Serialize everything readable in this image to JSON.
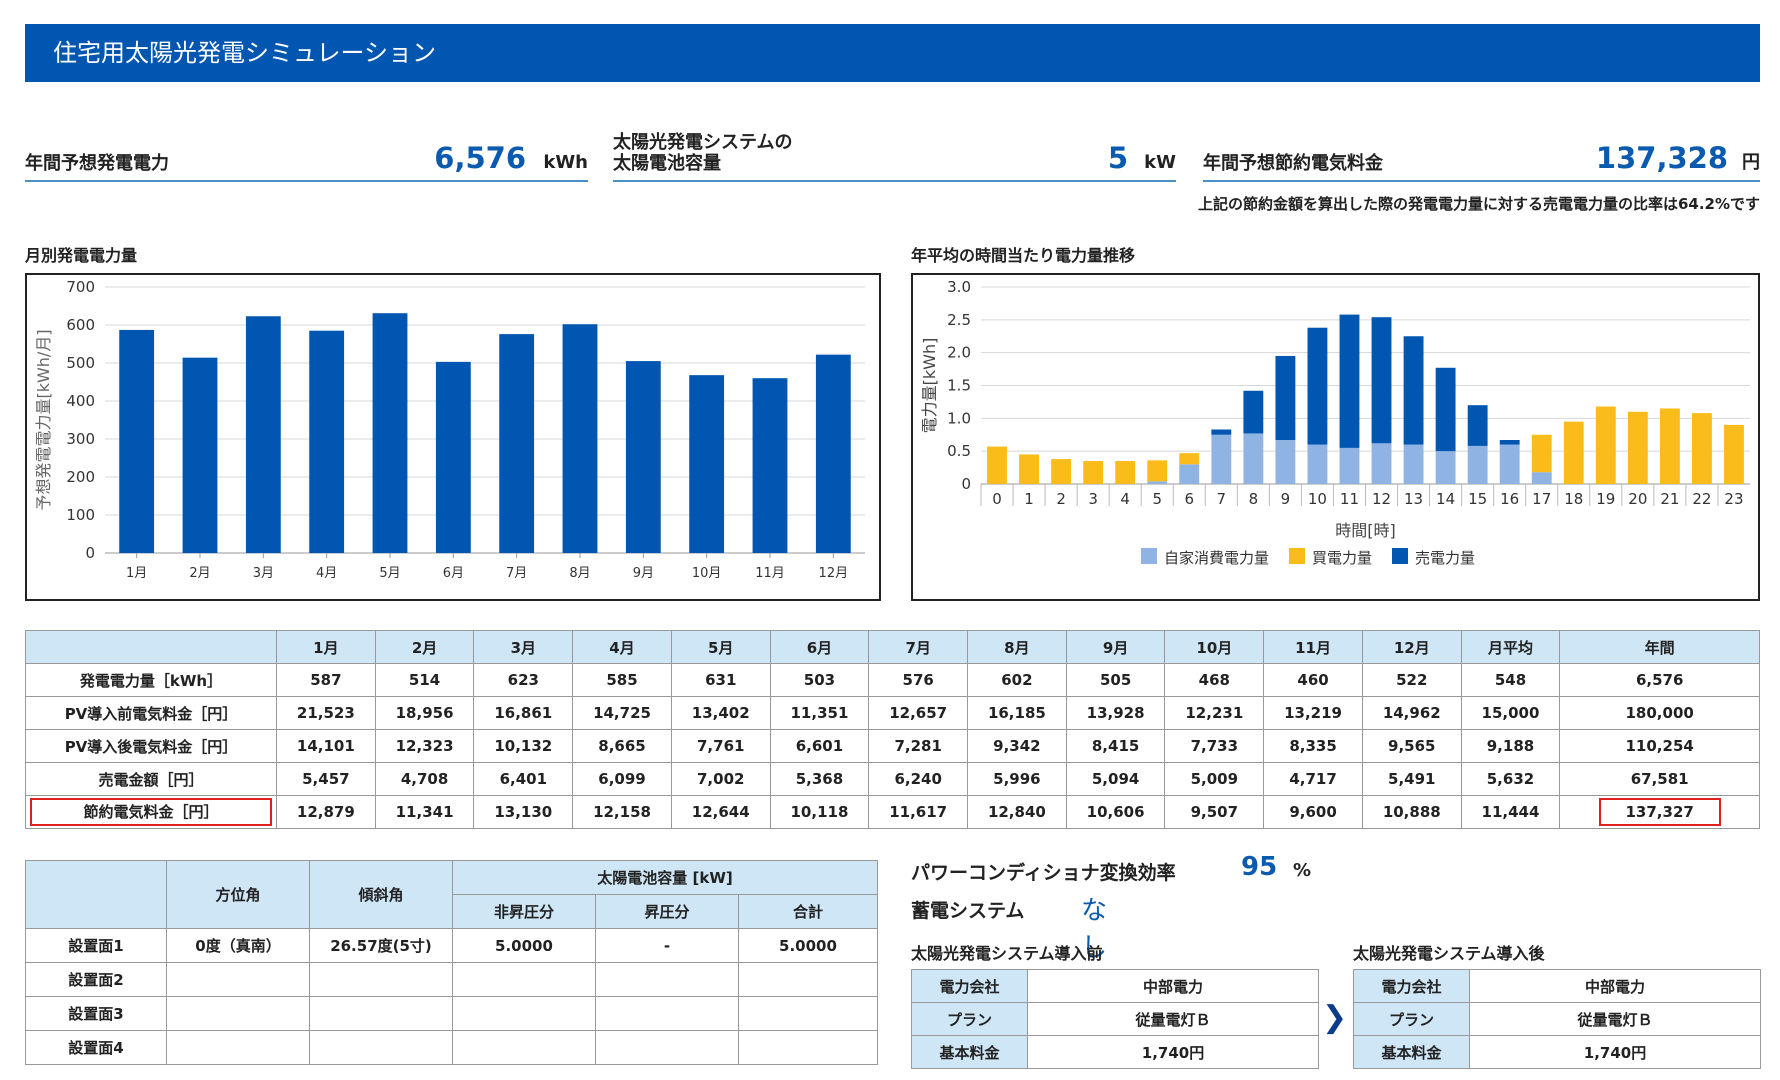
{
  "header": {
    "title": "住宅用太陽光発電シミュレーション"
  },
  "kpis": {
    "annual_generation": {
      "label": "年間予想発電電力",
      "value": "6,576",
      "unit": "kWh"
    },
    "capacity": {
      "label_line1": "太陽光発電システムの",
      "label_line2": "太陽電池容量",
      "value": "5",
      "unit": "kW"
    },
    "annual_savings": {
      "label": "年間予想節約電気料金",
      "value": "137,328",
      "unit": "円"
    }
  },
  "note": "上記の節約金額を算出した際の発電電力量に対する売電電力量の比率は64.2%です",
  "chart_data": [
    {
      "type": "bar",
      "title": "月別発電電力量",
      "ylabel": "予想発電電力量[kWh/月]",
      "xlabel": "",
      "ylim": [
        0,
        700
      ],
      "yticks": [
        "0",
        "100",
        "200",
        "300",
        "400",
        "500",
        "600",
        "700"
      ],
      "categories": [
        "1月",
        "2月",
        "3月",
        "4月",
        "5月",
        "6月",
        "7月",
        "8月",
        "9月",
        "10月",
        "11月",
        "12月"
      ],
      "values": [
        587,
        514,
        623,
        585,
        631,
        503,
        576,
        602,
        505,
        468,
        460,
        522
      ],
      "grid": true,
      "color": "#0056b0"
    },
    {
      "type": "bar",
      "stacked": true,
      "title": "年平均の時間当たり電力量推移",
      "ylabel": "電力量[kWh]",
      "xlabel": "時間[時]",
      "ylim": [
        0,
        3.0
      ],
      "yticks": [
        "0",
        "0.5",
        "1.0",
        "1.5",
        "2.0",
        "2.5",
        "3.0"
      ],
      "categories": [
        "0",
        "1",
        "2",
        "3",
        "4",
        "5",
        "6",
        "7",
        "8",
        "9",
        "10",
        "11",
        "12",
        "13",
        "14",
        "15",
        "16",
        "17",
        "18",
        "19",
        "20",
        "21",
        "22",
        "23"
      ],
      "series": [
        {
          "name": "自家消費電力量",
          "color": "#8fb3e3",
          "values": [
            0,
            0,
            0,
            0,
            0,
            0.04,
            0.3,
            0.75,
            0.77,
            0.67,
            0.6,
            0.55,
            0.62,
            0.6,
            0.5,
            0.58,
            0.6,
            0.18,
            0,
            0,
            0,
            0,
            0,
            0
          ]
        },
        {
          "name": "買電力量",
          "color": "#f9bc1a",
          "values": [
            0.57,
            0.45,
            0.38,
            0.35,
            0.35,
            0.32,
            0.17,
            0,
            0,
            0,
            0,
            0,
            0,
            0,
            0,
            0,
            0,
            0.57,
            0.95,
            1.18,
            1.1,
            1.15,
            1.08,
            0.9
          ]
        },
        {
          "name": "売電力量",
          "color": "#0056b0",
          "values": [
            0,
            0,
            0,
            0,
            0,
            0,
            0,
            0.08,
            0.65,
            1.28,
            1.78,
            2.03,
            1.92,
            1.65,
            1.27,
            0.62,
            0.07,
            0,
            0,
            0,
            0,
            0,
            0,
            0
          ]
        }
      ],
      "legend": "bottom",
      "grid": true
    }
  ],
  "monthly_table": {
    "headers": [
      "",
      "1月",
      "2月",
      "3月",
      "4月",
      "5月",
      "6月",
      "7月",
      "8月",
      "9月",
      "10月",
      "11月",
      "12月",
      "月平均",
      "年間"
    ],
    "rows": [
      {
        "label": "発電電力量［kWh］",
        "cells": [
          "587",
          "514",
          "623",
          "585",
          "631",
          "503",
          "576",
          "602",
          "505",
          "468",
          "460",
          "522",
          "548",
          "6,576"
        ]
      },
      {
        "label": "PV導入前電気料金［円］",
        "cells": [
          "21,523",
          "18,956",
          "16,861",
          "14,725",
          "13,402",
          "11,351",
          "12,657",
          "16,185",
          "13,928",
          "12,231",
          "13,219",
          "14,962",
          "15,000",
          "180,000"
        ]
      },
      {
        "label": "PV導入後電気料金［円］",
        "cells": [
          "14,101",
          "12,323",
          "10,132",
          "8,665",
          "7,761",
          "6,601",
          "7,281",
          "9,342",
          "8,415",
          "7,733",
          "8,335",
          "9,565",
          "9,188",
          "110,254"
        ]
      },
      {
        "label": "売電金額［円］",
        "cells": [
          "5,457",
          "4,708",
          "6,401",
          "6,099",
          "7,002",
          "5,368",
          "6,240",
          "5,996",
          "5,094",
          "5,009",
          "4,717",
          "5,491",
          "5,632",
          "67,581"
        ]
      },
      {
        "label": "節約電気料金［円］",
        "cells": [
          "12,879",
          "11,341",
          "13,130",
          "12,158",
          "12,644",
          "10,118",
          "11,617",
          "12,840",
          "10,606",
          "9,507",
          "9,600",
          "10,888",
          "11,444",
          "137,327"
        ]
      }
    ]
  },
  "panel_table": {
    "h_azimuth": "方位角",
    "h_tilt": "傾斜角",
    "h_capacity": "太陽電池容量 [kW]",
    "h_non_boost": "非昇圧分",
    "h_boost": "昇圧分",
    "h_total": "合計",
    "rows": [
      {
        "label": "設置面1",
        "azimuth": "0度（真南）",
        "tilt": "26.57度(5寸)",
        "non_boost": "5.0000",
        "boost": "-",
        "total": "5.0000"
      },
      {
        "label": "設置面2",
        "azimuth": "",
        "tilt": "",
        "non_boost": "",
        "boost": "",
        "total": ""
      },
      {
        "label": "設置面3",
        "azimuth": "",
        "tilt": "",
        "non_boost": "",
        "boost": "",
        "total": ""
      },
      {
        "label": "設置面4",
        "azimuth": "",
        "tilt": "",
        "non_boost": "",
        "boost": "",
        "total": ""
      }
    ]
  },
  "info": {
    "pcs_label": "パワーコンディショナ変換効率",
    "pcs_value": "95",
    "pcs_unit": "%",
    "storage_label": "蓄電システム",
    "storage_value": "なし"
  },
  "before": {
    "title": "太陽光発電システム導入前",
    "rows": [
      {
        "k": "電力会社",
        "v": "中部電力"
      },
      {
        "k": "プラン",
        "v": "従量電灯Ｂ"
      },
      {
        "k": "基本料金",
        "v": "1,740円"
      }
    ]
  },
  "after": {
    "title": "太陽光発電システム導入後",
    "rows": [
      {
        "k": "電力会社",
        "v": "中部電力"
      },
      {
        "k": "プラン",
        "v": "従量電灯Ｂ"
      },
      {
        "k": "基本料金",
        "v": "1,740円"
      }
    ]
  }
}
